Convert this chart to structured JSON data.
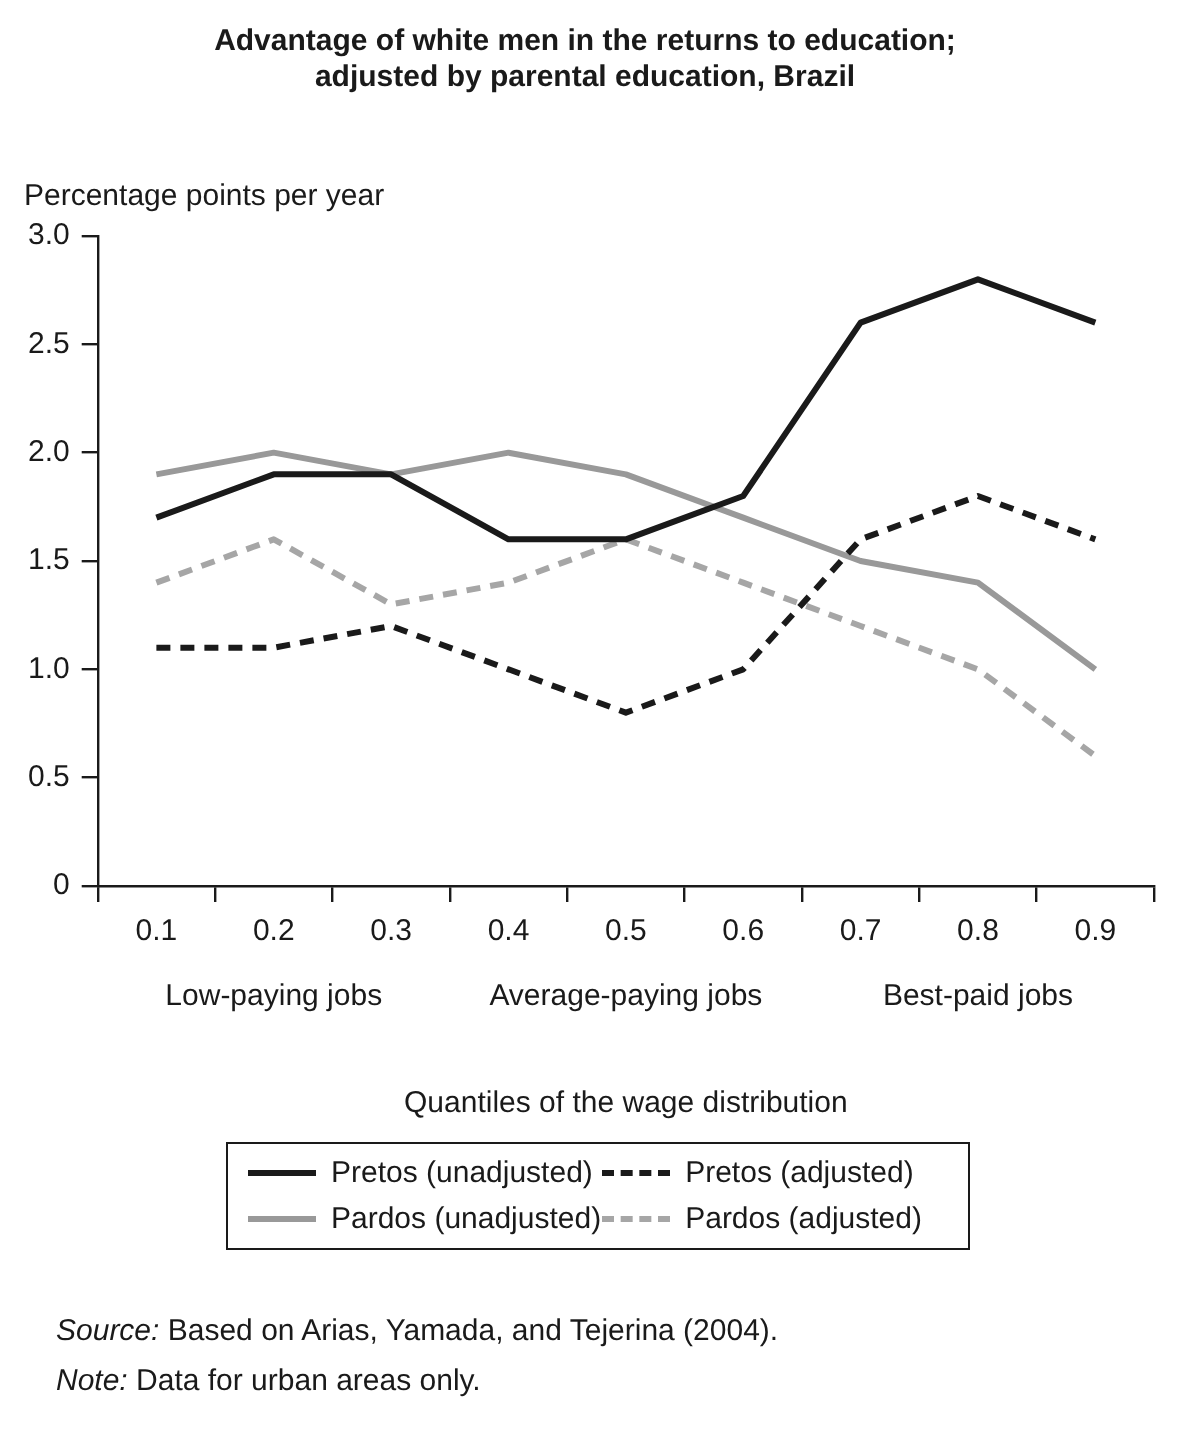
{
  "chart_data": {
    "type": "line",
    "title": "Advantage of white men in the returns to education;\nadjusted by parental education, Brazil",
    "ylabel": "Percentage points per year",
    "xlabel": "Quantiles of the wage distribution",
    "categories": [
      "0.1",
      "0.2",
      "0.3",
      "0.4",
      "0.5",
      "0.6",
      "0.7",
      "0.8",
      "0.9"
    ],
    "series": [
      {
        "name": "Pretos (unadjusted)",
        "color": "#1a1a1a",
        "line_style": "solid",
        "values": [
          1.7,
          1.9,
          1.9,
          1.6,
          1.6,
          1.8,
          2.6,
          2.8,
          2.6
        ]
      },
      {
        "name": "Pretos (adjusted)",
        "color": "#1a1a1a",
        "line_style": "dashed",
        "values": [
          1.1,
          1.1,
          1.2,
          1.0,
          0.8,
          1.0,
          1.6,
          1.8,
          1.6
        ]
      },
      {
        "name": "Pardos (unadjusted)",
        "color": "#999999",
        "line_style": "solid",
        "values": [
          1.9,
          2.0,
          1.9,
          2.0,
          1.9,
          1.7,
          1.5,
          1.4,
          1.0
        ]
      },
      {
        "name": "Pardos (adjusted)",
        "color": "#a6a6a6",
        "line_style": "dashed",
        "values": [
          1.4,
          1.6,
          1.3,
          1.4,
          1.6,
          1.4,
          1.2,
          1.0,
          0.6
        ]
      }
    ],
    "ylim": [
      0,
      3
    ],
    "yticks": [
      0,
      0.5,
      {
        "value": 1,
        "label": "1.0"
      },
      1.5,
      {
        "value": 2,
        "label": "2.0"
      },
      2.5,
      {
        "value": 3,
        "label": "3.0"
      }
    ],
    "grid": false,
    "legend": "bottom",
    "marker": "none",
    "annotations": [
      "Low-paying jobs",
      "Average-paying jobs",
      "Best-paid jobs",
      "Source: Based on Arias, Yamada, and Tejerina (2004).",
      "Note: Data for urban areas only."
    ]
  }
}
